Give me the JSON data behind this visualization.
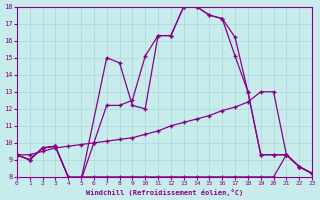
{
  "xlabel": "Windchill (Refroidissement éolien,°C)",
  "bg_color": "#c8ecec",
  "line_color": "#880088",
  "xlim": [
    0,
    23
  ],
  "ylim": [
    8,
    18
  ],
  "xticks": [
    0,
    1,
    2,
    3,
    4,
    5,
    6,
    7,
    8,
    9,
    10,
    11,
    12,
    13,
    14,
    15,
    16,
    17,
    18,
    19,
    20,
    21,
    22,
    23
  ],
  "yticks": [
    8,
    9,
    10,
    11,
    12,
    13,
    14,
    15,
    16,
    17,
    18
  ],
  "line1_x": [
    0,
    1,
    2,
    3,
    4,
    5,
    7,
    8,
    9,
    10,
    11,
    12,
    13,
    14,
    15,
    16,
    17,
    18,
    19,
    20,
    21,
    22,
    23
  ],
  "line1_y": [
    9.3,
    9.0,
    9.7,
    9.8,
    8.0,
    7.8,
    15.0,
    14.7,
    12.2,
    12.0,
    16.3,
    16.3,
    18.0,
    18.0,
    17.5,
    17.3,
    15.1,
    13.0,
    9.3,
    9.3,
    9.3,
    8.6,
    8.2
  ],
  "line2_x": [
    0,
    1,
    2,
    3,
    4,
    5,
    6,
    7,
    8,
    9,
    10,
    11,
    12,
    13,
    14,
    15,
    16,
    17,
    18,
    19,
    20,
    21,
    22,
    23
  ],
  "line2_y": [
    9.3,
    9.0,
    9.7,
    9.8,
    8.0,
    7.8,
    10.0,
    12.2,
    12.2,
    12.5,
    15.1,
    16.3,
    16.3,
    18.0,
    18.0,
    17.5,
    17.3,
    16.2,
    13.0,
    9.3,
    9.3,
    9.3,
    8.6,
    8.2
  ],
  "line3_x": [
    0,
    1,
    2,
    3,
    4,
    5,
    6,
    7,
    8,
    9,
    10,
    11,
    12,
    13,
    14,
    15,
    16,
    17,
    18,
    19,
    20,
    21,
    22,
    23
  ],
  "line3_y": [
    9.3,
    9.3,
    9.5,
    9.7,
    9.8,
    9.9,
    10.0,
    10.1,
    10.2,
    10.3,
    10.5,
    10.7,
    11.0,
    11.2,
    11.4,
    11.6,
    11.9,
    12.1,
    12.4,
    13.0,
    13.0,
    9.3,
    8.6,
    8.2
  ],
  "line4_x": [
    0,
    1,
    2,
    3,
    4,
    5,
    6,
    7,
    8,
    9,
    10,
    11,
    12,
    13,
    14,
    15,
    16,
    17,
    18,
    19,
    20,
    21,
    22,
    23
  ],
  "line4_y": [
    9.3,
    9.0,
    9.7,
    9.8,
    8.0,
    8.0,
    8.0,
    8.0,
    8.0,
    8.0,
    8.0,
    8.0,
    8.0,
    8.0,
    8.0,
    8.0,
    8.0,
    8.0,
    8.0,
    8.0,
    8.0,
    9.3,
    8.6,
    8.2
  ]
}
